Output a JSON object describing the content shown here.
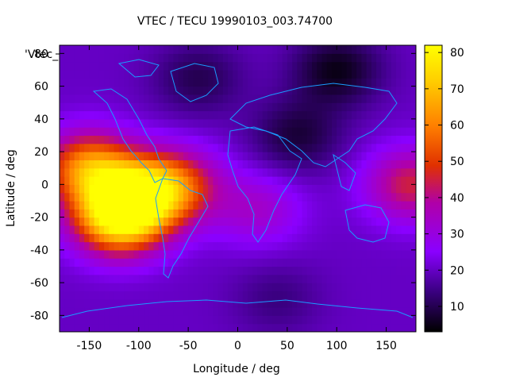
{
  "chart_data": {
    "type": "heatmap",
    "title": "VTEC / TECU 19990103_003.74700",
    "xlabel": "Longitude / deg",
    "ylabel": "Latitude / deg",
    "legend_entry": "'Vtec_",
    "xlim": [
      -180,
      180
    ],
    "ylim": [
      -90,
      85
    ],
    "xticks": [
      -150,
      -100,
      -50,
      0,
      50,
      100,
      150
    ],
    "yticks": [
      -80,
      -60,
      -40,
      -20,
      0,
      20,
      40,
      60,
      80
    ],
    "colorbar": {
      "min": 3,
      "max": 82,
      "ticks": [
        10,
        20,
        30,
        40,
        50,
        60,
        70,
        80
      ],
      "palette": [
        "#000000",
        "#3a0080",
        "#8a00ff",
        "#b000a8",
        "#e03000",
        "#ff8000",
        "#ffd000",
        "#ffff00"
      ]
    },
    "field": {
      "background": 20,
      "features": [
        {
          "lon": -150,
          "lat": 10,
          "value": 62
        },
        {
          "lon": -120,
          "lat": -20,
          "value": 78
        },
        {
          "lon": -95,
          "lat": -5,
          "value": 60
        },
        {
          "lon": -60,
          "lat": 0,
          "value": 45
        },
        {
          "lon": 175,
          "lat": 0,
          "value": 45
        },
        {
          "lon": 20,
          "lat": -15,
          "value": 33
        },
        {
          "lon": 100,
          "lat": 70,
          "value": 5
        },
        {
          "lon": -40,
          "lat": 65,
          "value": 10
        },
        {
          "lon": 60,
          "lat": 30,
          "value": 8
        },
        {
          "lon": 40,
          "lat": -70,
          "value": 14
        }
      ]
    }
  },
  "colors": {
    "coastline": "#1a9cff",
    "frame": "#000000"
  }
}
